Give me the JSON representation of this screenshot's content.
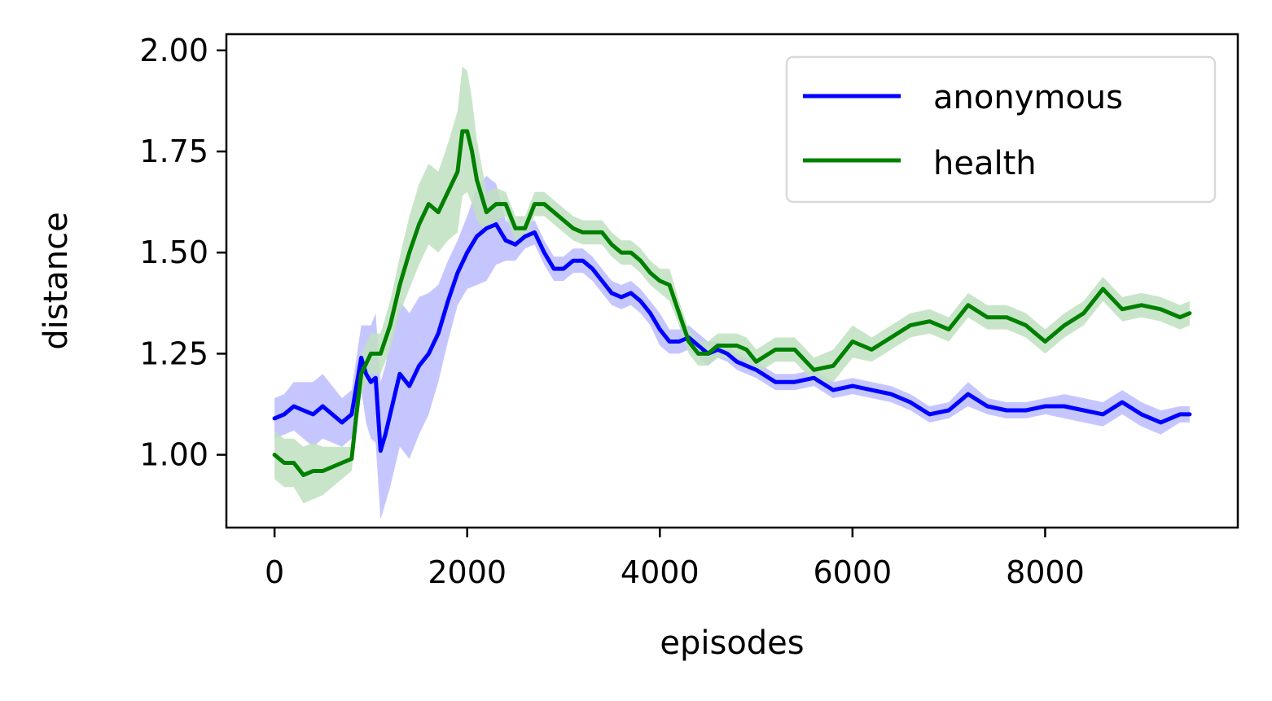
{
  "chart_data": {
    "type": "line",
    "xlabel": "episodes",
    "ylabel": "distance",
    "xlim": [
      -500,
      10000
    ],
    "ylim": [
      0.82,
      2.04
    ],
    "xticks": [
      0,
      2000,
      4000,
      6000,
      8000
    ],
    "xtick_labels": [
      "0",
      "2000",
      "4000",
      "6000",
      "8000"
    ],
    "yticks": [
      1.0,
      1.25,
      1.5,
      1.75,
      2.0
    ],
    "ytick_labels": [
      "1.00",
      "1.25",
      "1.50",
      "1.75",
      "2.00"
    ],
    "grid": false,
    "legend": {
      "position": "top-right",
      "entries": [
        "anonymous",
        "health"
      ]
    },
    "series": [
      {
        "name": "anonymous",
        "color": "#0000ff",
        "band_color": "#bcbcff",
        "x": [
          0,
          100,
          200,
          300,
          400,
          500,
          600,
          700,
          800,
          900,
          950,
          1000,
          1050,
          1100,
          1150,
          1200,
          1300,
          1400,
          1500,
          1600,
          1700,
          1800,
          1900,
          2000,
          2100,
          2200,
          2300,
          2400,
          2500,
          2600,
          2700,
          2800,
          2900,
          3000,
          3100,
          3200,
          3300,
          3400,
          3500,
          3600,
          3700,
          3800,
          3900,
          4000,
          4100,
          4200,
          4300,
          4400,
          4500,
          4600,
          4700,
          4800,
          4900,
          5000,
          5200,
          5400,
          5600,
          5800,
          6000,
          6200,
          6400,
          6600,
          6800,
          7000,
          7200,
          7400,
          7600,
          7800,
          8000,
          8200,
          8400,
          8600,
          8800,
          9000,
          9200,
          9400,
          9500
        ],
        "y": [
          1.09,
          1.1,
          1.12,
          1.11,
          1.1,
          1.12,
          1.1,
          1.08,
          1.1,
          1.24,
          1.2,
          1.18,
          1.19,
          1.01,
          1.05,
          1.1,
          1.2,
          1.17,
          1.22,
          1.25,
          1.3,
          1.38,
          1.45,
          1.5,
          1.54,
          1.56,
          1.57,
          1.53,
          1.52,
          1.54,
          1.55,
          1.5,
          1.46,
          1.46,
          1.48,
          1.48,
          1.46,
          1.43,
          1.4,
          1.39,
          1.4,
          1.38,
          1.35,
          1.31,
          1.28,
          1.28,
          1.29,
          1.27,
          1.25,
          1.26,
          1.25,
          1.23,
          1.22,
          1.21,
          1.18,
          1.18,
          1.19,
          1.16,
          1.17,
          1.16,
          1.15,
          1.13,
          1.1,
          1.11,
          1.15,
          1.12,
          1.11,
          1.11,
          1.12,
          1.12,
          1.11,
          1.1,
          1.13,
          1.1,
          1.08,
          1.1,
          1.1
        ],
        "band": [
          0.05,
          0.05,
          0.06,
          0.07,
          0.08,
          0.08,
          0.07,
          0.06,
          0.06,
          0.08,
          0.12,
          0.14,
          0.16,
          0.17,
          0.17,
          0.18,
          0.18,
          0.18,
          0.17,
          0.15,
          0.12,
          0.1,
          0.08,
          0.09,
          0.12,
          0.13,
          0.1,
          0.05,
          0.04,
          0.03,
          0.03,
          0.03,
          0.03,
          0.03,
          0.03,
          0.03,
          0.03,
          0.03,
          0.03,
          0.03,
          0.03,
          0.03,
          0.03,
          0.04,
          0.03,
          0.03,
          0.03,
          0.03,
          0.03,
          0.02,
          0.02,
          0.02,
          0.02,
          0.02,
          0.02,
          0.02,
          0.02,
          0.02,
          0.02,
          0.02,
          0.02,
          0.02,
          0.02,
          0.02,
          0.03,
          0.02,
          0.02,
          0.02,
          0.02,
          0.03,
          0.03,
          0.03,
          0.03,
          0.03,
          0.03,
          0.02,
          0.02
        ]
      },
      {
        "name": "health",
        "color": "#008000",
        "band_color": "#bfe0bf",
        "x": [
          0,
          100,
          200,
          300,
          400,
          500,
          600,
          700,
          800,
          850,
          900,
          1000,
          1100,
          1200,
          1300,
          1400,
          1500,
          1600,
          1700,
          1800,
          1900,
          1950,
          2000,
          2050,
          2100,
          2200,
          2300,
          2400,
          2500,
          2600,
          2700,
          2800,
          2900,
          3000,
          3100,
          3200,
          3300,
          3400,
          3500,
          3600,
          3700,
          3800,
          3900,
          4000,
          4100,
          4200,
          4300,
          4400,
          4500,
          4600,
          4700,
          4800,
          4900,
          5000,
          5200,
          5400,
          5600,
          5800,
          6000,
          6200,
          6400,
          6600,
          6800,
          7000,
          7200,
          7400,
          7600,
          7800,
          8000,
          8200,
          8400,
          8600,
          8800,
          9000,
          9200,
          9400,
          9500
        ],
        "y": [
          1.0,
          0.98,
          0.98,
          0.95,
          0.96,
          0.96,
          0.97,
          0.98,
          0.99,
          1.1,
          1.2,
          1.25,
          1.25,
          1.32,
          1.42,
          1.5,
          1.57,
          1.62,
          1.6,
          1.65,
          1.7,
          1.8,
          1.8,
          1.75,
          1.68,
          1.6,
          1.62,
          1.62,
          1.56,
          1.56,
          1.62,
          1.62,
          1.6,
          1.58,
          1.56,
          1.55,
          1.55,
          1.55,
          1.52,
          1.5,
          1.5,
          1.48,
          1.45,
          1.43,
          1.42,
          1.35,
          1.28,
          1.25,
          1.25,
          1.27,
          1.27,
          1.27,
          1.26,
          1.23,
          1.26,
          1.26,
          1.21,
          1.22,
          1.28,
          1.26,
          1.29,
          1.32,
          1.33,
          1.31,
          1.37,
          1.34,
          1.34,
          1.32,
          1.28,
          1.32,
          1.35,
          1.41,
          1.36,
          1.37,
          1.36,
          1.34,
          1.35
        ],
        "band": [
          0.06,
          0.06,
          0.06,
          0.07,
          0.07,
          0.06,
          0.05,
          0.04,
          0.03,
          0.04,
          0.05,
          0.05,
          0.05,
          0.06,
          0.07,
          0.09,
          0.1,
          0.1,
          0.1,
          0.12,
          0.15,
          0.16,
          0.15,
          0.13,
          0.1,
          0.05,
          0.04,
          0.03,
          0.03,
          0.03,
          0.03,
          0.03,
          0.03,
          0.03,
          0.03,
          0.03,
          0.03,
          0.03,
          0.03,
          0.03,
          0.03,
          0.03,
          0.03,
          0.03,
          0.04,
          0.03,
          0.03,
          0.03,
          0.03,
          0.03,
          0.03,
          0.03,
          0.03,
          0.03,
          0.03,
          0.03,
          0.03,
          0.04,
          0.04,
          0.03,
          0.03,
          0.03,
          0.03,
          0.03,
          0.03,
          0.03,
          0.03,
          0.03,
          0.03,
          0.03,
          0.03,
          0.03,
          0.03,
          0.03,
          0.03,
          0.03,
          0.03
        ]
      }
    ]
  }
}
